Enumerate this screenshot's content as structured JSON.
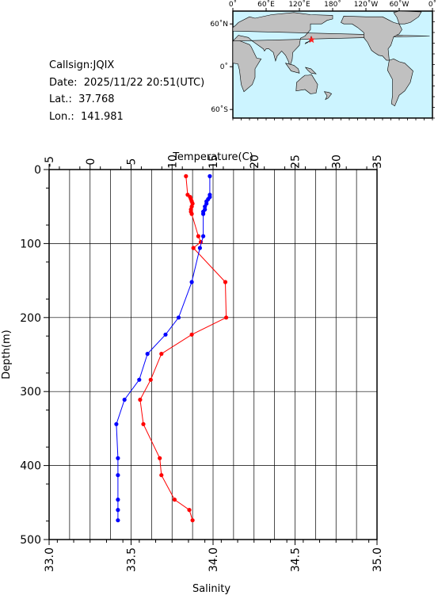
{
  "station": {
    "callsign_label": "Callsign:",
    "callsign": "JQIX",
    "date_label": "Date:",
    "date": "2025/11/22 20:51(UTC)",
    "lat_label": "Lat.:",
    "lat": "37.768",
    "lon_label": "Lon.:",
    "lon": "141.981"
  },
  "map": {
    "top_ticks": [
      "0˚",
      "60˚E",
      "120˚E",
      "180˚",
      "120˚W",
      "60˚W",
      "0˚"
    ],
    "left_ticks": [
      "60˚N",
      "0˚",
      "60˚S"
    ],
    "ocean_color": "#ccf4ff",
    "land_color": "#c0c0c0",
    "marker_color": "#ff2020",
    "marker": {
      "lon": 141.981,
      "lat": 37.768
    }
  },
  "chart_data": {
    "type": "line",
    "top_axis": {
      "label": "Temperature(C)",
      "range": [
        -5,
        35
      ],
      "ticks": [
        "-5",
        "0",
        "5",
        "10",
        "15",
        "20",
        "25",
        "30",
        "35"
      ]
    },
    "bottom_axis": {
      "label": "Salinity",
      "range": [
        33.0,
        35.0
      ],
      "ticks": [
        "33.0",
        "33.5",
        "34.0",
        "34.5",
        "35.0"
      ]
    },
    "left_axis": {
      "label": "Depth(m)",
      "range": [
        0,
        500
      ],
      "inverted": true,
      "ticks": [
        "0",
        "100",
        "200",
        "300",
        "400",
        "500"
      ]
    },
    "grid": true,
    "series": [
      {
        "variable": "temperature",
        "axis": "top",
        "color": "#ff0000",
        "points": [
          [
            11.7,
            9
          ],
          [
            11.9,
            34
          ],
          [
            12.2,
            37
          ],
          [
            12.3,
            40
          ],
          [
            12.4,
            43
          ],
          [
            12.5,
            46
          ],
          [
            12.4,
            50
          ],
          [
            12.3,
            54
          ],
          [
            12.3,
            57
          ],
          [
            12.4,
            60
          ],
          [
            13.2,
            90
          ],
          [
            13.5,
            98
          ],
          [
            12.6,
            106
          ],
          [
            16.5,
            152
          ],
          [
            16.6,
            200
          ],
          [
            12.4,
            223
          ],
          [
            8.7,
            249
          ],
          [
            7.4,
            284
          ],
          [
            6.1,
            311
          ],
          [
            6.5,
            344
          ],
          [
            8.5,
            390
          ],
          [
            8.7,
            413
          ],
          [
            10.3,
            446
          ],
          [
            12.1,
            460
          ],
          [
            12.5,
            474
          ]
        ]
      },
      {
        "variable": "salinity",
        "axis": "bottom",
        "color": "#0000ff",
        "points": [
          [
            33.98,
            9
          ],
          [
            33.98,
            34
          ],
          [
            33.98,
            37
          ],
          [
            33.97,
            40
          ],
          [
            33.96,
            43
          ],
          [
            33.96,
            46
          ],
          [
            33.95,
            50
          ],
          [
            33.95,
            54
          ],
          [
            33.94,
            57
          ],
          [
            33.94,
            60
          ],
          [
            33.94,
            90
          ],
          [
            33.92,
            106
          ],
          [
            33.87,
            152
          ],
          [
            33.79,
            200
          ],
          [
            33.71,
            223
          ],
          [
            33.6,
            249
          ],
          [
            33.55,
            284
          ],
          [
            33.46,
            311
          ],
          [
            33.41,
            344
          ],
          [
            33.42,
            390
          ],
          [
            33.42,
            413
          ],
          [
            33.42,
            446
          ],
          [
            33.42,
            460
          ],
          [
            33.42,
            474
          ]
        ]
      }
    ]
  }
}
